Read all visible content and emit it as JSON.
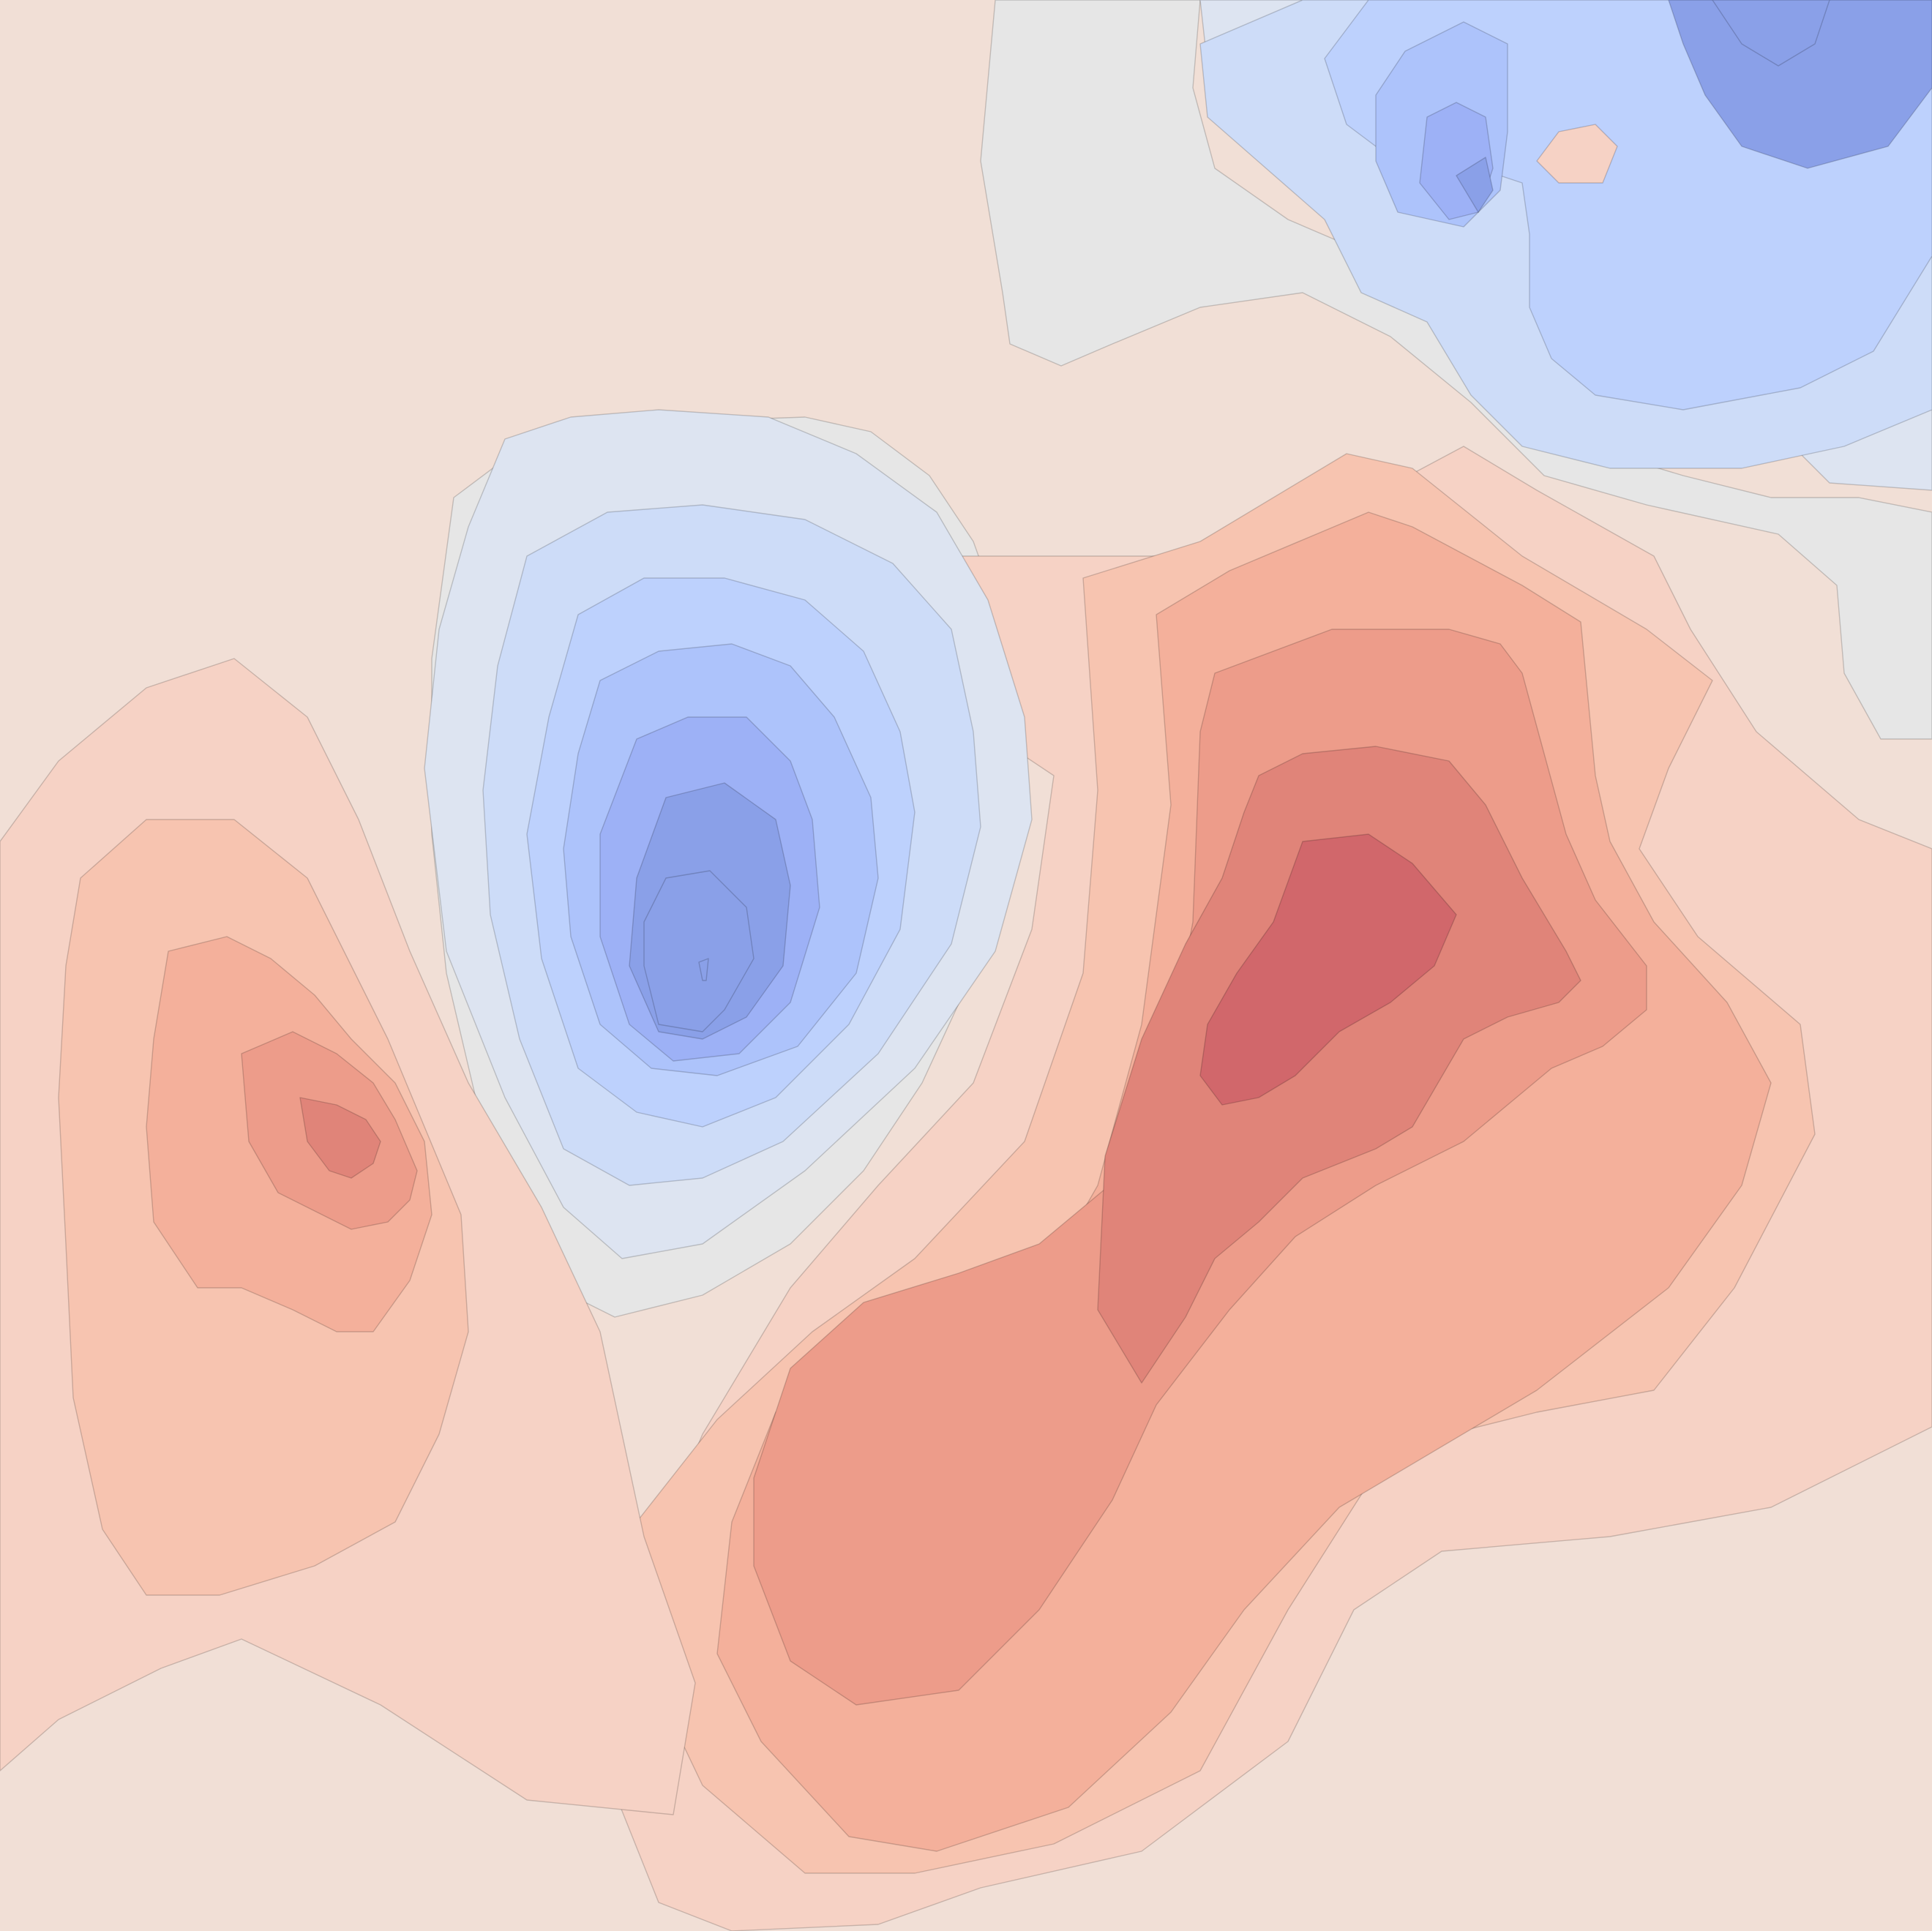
{
  "chart_data": {
    "type": "contour",
    "title": "",
    "xlabel": "",
    "ylabel": "",
    "colormap": "coolwarm",
    "axes_visible": false,
    "grid": false,
    "legend": "none",
    "levels": [
      -0.8,
      -0.6,
      -0.45,
      -0.3,
      -0.2,
      -0.1,
      0,
      0.1,
      0.2,
      0.3,
      0.45,
      0.6,
      0.8
    ],
    "band_colors": [
      "#8aa0e8",
      "#9db1f6",
      "#adc3fb",
      "#bdd1fd",
      "#cddcf8",
      "#dde4f1",
      "#e6e6e6",
      "#f1dfd6",
      "#f6d2c5",
      "#f7c4b0",
      "#f4b09b",
      "#ed9c8a",
      "#e08479",
      "#d1676b"
    ],
    "extrema": [
      {
        "kind": "max",
        "peak_value": 0.85,
        "location": "right-center"
      },
      {
        "kind": "max",
        "peak_value": 0.8,
        "location": "left"
      },
      {
        "kind": "min",
        "peak_value": -0.8,
        "location": "center"
      },
      {
        "kind": "min",
        "peak_value": -0.8,
        "location": "top-right"
      },
      {
        "kind": "max",
        "peak_value": 0.05,
        "location": "top-right"
      }
    ]
  }
}
